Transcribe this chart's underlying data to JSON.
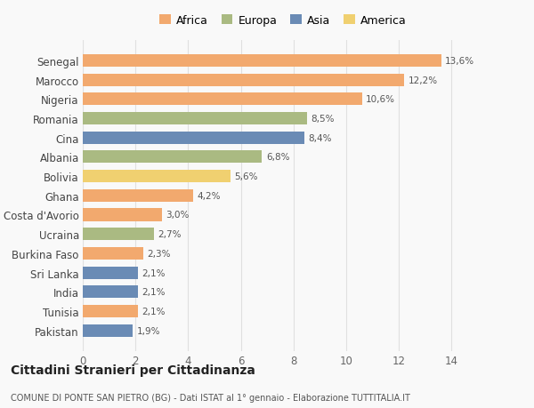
{
  "countries": [
    "Pakistan",
    "Tunisia",
    "India",
    "Sri Lanka",
    "Burkina Faso",
    "Ucraina",
    "Costa d'Avorio",
    "Ghana",
    "Bolivia",
    "Albania",
    "Cina",
    "Romania",
    "Nigeria",
    "Marocco",
    "Senegal"
  ],
  "values": [
    1.9,
    2.1,
    2.1,
    2.1,
    2.3,
    2.7,
    3.0,
    4.2,
    5.6,
    6.8,
    8.4,
    8.5,
    10.6,
    12.2,
    13.6
  ],
  "labels": [
    "1,9%",
    "2,1%",
    "2,1%",
    "2,1%",
    "2,3%",
    "2,7%",
    "3,0%",
    "4,2%",
    "5,6%",
    "6,8%",
    "8,4%",
    "8,5%",
    "10,6%",
    "12,2%",
    "13,6%"
  ],
  "continents": [
    "Asia",
    "Africa",
    "Asia",
    "Asia",
    "Africa",
    "Europa",
    "Africa",
    "Africa",
    "America",
    "Europa",
    "Asia",
    "Europa",
    "Africa",
    "Africa",
    "Africa"
  ],
  "continent_colors": {
    "Africa": "#F2A96E",
    "Europa": "#AABA82",
    "Asia": "#6A8BB5",
    "America": "#F0D070"
  },
  "legend_order": [
    "Africa",
    "Europa",
    "Asia",
    "America"
  ],
  "xlim": [
    0,
    15.2
  ],
  "xticks": [
    0,
    2,
    4,
    6,
    8,
    10,
    12,
    14
  ],
  "title": "Cittadini Stranieri per Cittadinanza",
  "subtitle": "COMUNE DI PONTE SAN PIETRO (BG) - Dati ISTAT al 1° gennaio - Elaborazione TUTTITALIA.IT",
  "background_color": "#f9f9f9"
}
